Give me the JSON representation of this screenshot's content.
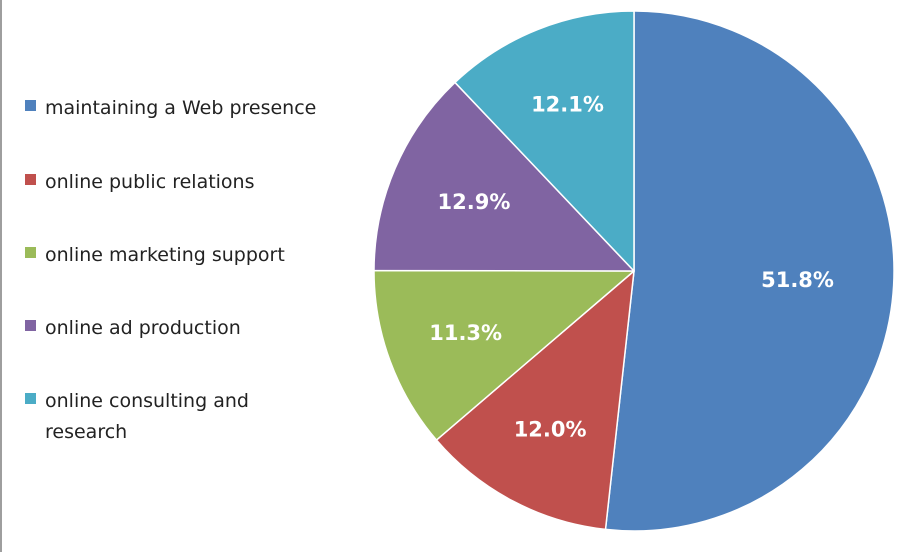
{
  "chart_data": {
    "type": "pie",
    "title": "",
    "legend_position": "left",
    "slices": [
      {
        "label": "maintaining a Web presence",
        "value": 51.8,
        "display": "51.8%",
        "color": "#4F81BD"
      },
      {
        "label": "online public relations",
        "value": 12.0,
        "display": "12.0%",
        "color": "#C0504D"
      },
      {
        "label": "online marketing support",
        "value": 11.3,
        "display": "11.3%",
        "color": "#9BBB59"
      },
      {
        "label": "online ad production",
        "value": 12.9,
        "display": "12.9%",
        "color": "#8064A2"
      },
      {
        "label": "online consulting and research",
        "value": 12.1,
        "display": "12.1%",
        "color": "#4BACC6"
      }
    ]
  }
}
